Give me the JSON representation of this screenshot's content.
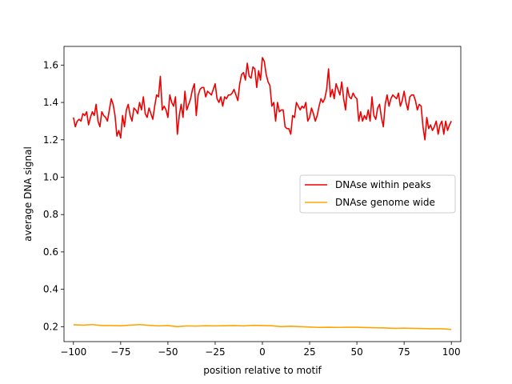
{
  "chart_data": {
    "type": "line",
    "title": "",
    "xlabel": "position relative to motif",
    "ylabel": "average DNA signal",
    "xlim": [
      -105,
      105
    ],
    "ylim": [
      0.12,
      1.7
    ],
    "xticks": [
      -100,
      -75,
      -50,
      -25,
      0,
      25,
      50,
      75,
      100
    ],
    "xtick_labels": [
      "−100",
      "−75",
      "−50",
      "−25",
      "0",
      "25",
      "50",
      "75",
      "100"
    ],
    "yticks": [
      0.2,
      0.4,
      0.6,
      0.8,
      1.0,
      1.2,
      1.4,
      1.6
    ],
    "ytick_labels": [
      "0.2",
      "0.4",
      "0.6",
      "0.8",
      "1.0",
      "1.2",
      "1.4",
      "1.6"
    ],
    "grid": false,
    "legend_position": "center-right",
    "series": [
      {
        "name": "DNAse within peaks",
        "color": "#ee0000",
        "points": [
          [
            -100,
            1.32
          ],
          [
            -99,
            1.27
          ],
          [
            -98,
            1.3
          ],
          [
            -97,
            1.31
          ],
          [
            -96,
            1.3
          ],
          [
            -95,
            1.34
          ],
          [
            -94,
            1.33
          ],
          [
            -93,
            1.35
          ],
          [
            -92,
            1.28
          ],
          [
            -91,
            1.32
          ],
          [
            -90,
            1.35
          ],
          [
            -89,
            1.33
          ],
          [
            -88,
            1.39
          ],
          [
            -87,
            1.3
          ],
          [
            -86,
            1.27
          ],
          [
            -85,
            1.35
          ],
          [
            -84,
            1.33
          ],
          [
            -83,
            1.32
          ],
          [
            -82,
            1.3
          ],
          [
            -81,
            1.36
          ],
          [
            -80,
            1.42
          ],
          [
            -79,
            1.39
          ],
          [
            -78,
            1.33
          ],
          [
            -77,
            1.22
          ],
          [
            -76,
            1.25
          ],
          [
            -75,
            1.21
          ],
          [
            -74,
            1.33
          ],
          [
            -73,
            1.27
          ],
          [
            -72,
            1.36
          ],
          [
            -71,
            1.39
          ],
          [
            -70,
            1.33
          ],
          [
            -69,
            1.3
          ],
          [
            -68,
            1.37
          ],
          [
            -67,
            1.36
          ],
          [
            -66,
            1.34
          ],
          [
            -65,
            1.4
          ],
          [
            -64,
            1.36
          ],
          [
            -63,
            1.43
          ],
          [
            -62,
            1.34
          ],
          [
            -61,
            1.32
          ],
          [
            -60,
            1.37
          ],
          [
            -59,
            1.34
          ],
          [
            -58,
            1.31
          ],
          [
            -57,
            1.38
          ],
          [
            -56,
            1.44
          ],
          [
            -55,
            1.43
          ],
          [
            -54,
            1.54
          ],
          [
            -53,
            1.36
          ],
          [
            -52,
            1.38
          ],
          [
            -51,
            1.36
          ],
          [
            -50,
            1.32
          ],
          [
            -49,
            1.44
          ],
          [
            -48,
            1.4
          ],
          [
            -47,
            1.38
          ],
          [
            -46,
            1.43
          ],
          [
            -45,
            1.23
          ],
          [
            -44,
            1.33
          ],
          [
            -43,
            1.39
          ],
          [
            -42,
            1.32
          ],
          [
            -41,
            1.46
          ],
          [
            -40,
            1.36
          ],
          [
            -39,
            1.39
          ],
          [
            -38,
            1.42
          ],
          [
            -37,
            1.47
          ],
          [
            -36,
            1.5
          ],
          [
            -35,
            1.33
          ],
          [
            -34,
            1.44
          ],
          [
            -33,
            1.47
          ],
          [
            -32,
            1.48
          ],
          [
            -31,
            1.48
          ],
          [
            -30,
            1.43
          ],
          [
            -29,
            1.46
          ],
          [
            -28,
            1.45
          ],
          [
            -27,
            1.44
          ],
          [
            -26,
            1.47
          ],
          [
            -25,
            1.5
          ],
          [
            -24,
            1.42
          ],
          [
            -23,
            1.4
          ],
          [
            -22,
            1.43
          ],
          [
            -21,
            1.38
          ],
          [
            -20,
            1.43
          ],
          [
            -19,
            1.42
          ],
          [
            -18,
            1.44
          ],
          [
            -17,
            1.44
          ],
          [
            -16,
            1.45
          ],
          [
            -15,
            1.47
          ],
          [
            -14,
            1.44
          ],
          [
            -13,
            1.41
          ],
          [
            -12,
            1.5
          ],
          [
            -11,
            1.55
          ],
          [
            -10,
            1.56
          ],
          [
            -9,
            1.52
          ],
          [
            -8,
            1.61
          ],
          [
            -7,
            1.54
          ],
          [
            -6,
            1.53
          ],
          [
            -5,
            1.59
          ],
          [
            -4,
            1.58
          ],
          [
            -3,
            1.48
          ],
          [
            -2,
            1.57
          ],
          [
            -1,
            1.52
          ],
          [
            0,
            1.64
          ],
          [
            1,
            1.62
          ],
          [
            2,
            1.55
          ],
          [
            3,
            1.51
          ],
          [
            4,
            1.49
          ],
          [
            5,
            1.38
          ],
          [
            6,
            1.4
          ],
          [
            7,
            1.3
          ],
          [
            8,
            1.4
          ],
          [
            9,
            1.35
          ],
          [
            10,
            1.36
          ],
          [
            11,
            1.36
          ],
          [
            12,
            1.27
          ],
          [
            13,
            1.26
          ],
          [
            14,
            1.26
          ],
          [
            15,
            1.23
          ],
          [
            16,
            1.33
          ],
          [
            17,
            1.32
          ],
          [
            18,
            1.4
          ],
          [
            19,
            1.38
          ],
          [
            20,
            1.36
          ],
          [
            21,
            1.38
          ],
          [
            22,
            1.37
          ],
          [
            23,
            1.4
          ],
          [
            24,
            1.3
          ],
          [
            25,
            1.32
          ],
          [
            26,
            1.37
          ],
          [
            27,
            1.34
          ],
          [
            28,
            1.3
          ],
          [
            29,
            1.33
          ],
          [
            30,
            1.38
          ],
          [
            31,
            1.42
          ],
          [
            32,
            1.4
          ],
          [
            33,
            1.42
          ],
          [
            34,
            1.47
          ],
          [
            35,
            1.58
          ],
          [
            36,
            1.43
          ],
          [
            37,
            1.47
          ],
          [
            38,
            1.42
          ],
          [
            39,
            1.5
          ],
          [
            40,
            1.47
          ],
          [
            41,
            1.44
          ],
          [
            42,
            1.51
          ],
          [
            43,
            1.42
          ],
          [
            44,
            1.36
          ],
          [
            45,
            1.48
          ],
          [
            46,
            1.43
          ],
          [
            47,
            1.42
          ],
          [
            48,
            1.45
          ],
          [
            49,
            1.43
          ],
          [
            50,
            1.42
          ],
          [
            51,
            1.3
          ],
          [
            52,
            1.35
          ],
          [
            53,
            1.3
          ],
          [
            54,
            1.33
          ],
          [
            55,
            1.31
          ],
          [
            56,
            1.36
          ],
          [
            57,
            1.3
          ],
          [
            58,
            1.43
          ],
          [
            59,
            1.33
          ],
          [
            60,
            1.31
          ],
          [
            61,
            1.37
          ],
          [
            62,
            1.39
          ],
          [
            63,
            1.32
          ],
          [
            64,
            1.27
          ],
          [
            65,
            1.39
          ],
          [
            66,
            1.44
          ],
          [
            67,
            1.38
          ],
          [
            68,
            1.42
          ],
          [
            69,
            1.44
          ],
          [
            70,
            1.43
          ],
          [
            71,
            1.42
          ],
          [
            72,
            1.45
          ],
          [
            73,
            1.38
          ],
          [
            74,
            1.41
          ],
          [
            75,
            1.46
          ],
          [
            76,
            1.4
          ],
          [
            77,
            1.36
          ],
          [
            78,
            1.43
          ],
          [
            79,
            1.44
          ],
          [
            80,
            1.44
          ],
          [
            81,
            1.41
          ],
          [
            82,
            1.36
          ],
          [
            83,
            1.39
          ],
          [
            84,
            1.38
          ],
          [
            85,
            1.27
          ],
          [
            86,
            1.2
          ],
          [
            87,
            1.32
          ],
          [
            88,
            1.26
          ],
          [
            89,
            1.28
          ],
          [
            90,
            1.25
          ],
          [
            91,
            1.27
          ],
          [
            92,
            1.3
          ],
          [
            93,
            1.23
          ],
          [
            94,
            1.28
          ],
          [
            95,
            1.3
          ],
          [
            96,
            1.23
          ],
          [
            97,
            1.3
          ],
          [
            98,
            1.25
          ],
          [
            99,
            1.28
          ],
          [
            100,
            1.3
          ]
        ]
      },
      {
        "name": "DNAse genome wide",
        "color": "#ffa500",
        "points": [
          [
            -100,
            0.21
          ],
          [
            -95,
            0.208
          ],
          [
            -90,
            0.211
          ],
          [
            -85,
            0.206
          ],
          [
            -80,
            0.206
          ],
          [
            -75,
            0.205
          ],
          [
            -70,
            0.208
          ],
          [
            -65,
            0.211
          ],
          [
            -60,
            0.207
          ],
          [
            -55,
            0.204
          ],
          [
            -50,
            0.206
          ],
          [
            -45,
            0.2
          ],
          [
            -40,
            0.204
          ],
          [
            -35,
            0.203
          ],
          [
            -30,
            0.205
          ],
          [
            -25,
            0.204
          ],
          [
            -20,
            0.205
          ],
          [
            -15,
            0.206
          ],
          [
            -10,
            0.204
          ],
          [
            -5,
            0.207
          ],
          [
            0,
            0.206
          ],
          [
            5,
            0.205
          ],
          [
            10,
            0.2
          ],
          [
            15,
            0.202
          ],
          [
            20,
            0.2
          ],
          [
            25,
            0.198
          ],
          [
            30,
            0.196
          ],
          [
            35,
            0.197
          ],
          [
            40,
            0.196
          ],
          [
            45,
            0.197
          ],
          [
            50,
            0.197
          ],
          [
            55,
            0.195
          ],
          [
            60,
            0.194
          ],
          [
            65,
            0.193
          ],
          [
            70,
            0.191
          ],
          [
            75,
            0.192
          ],
          [
            80,
            0.191
          ],
          [
            85,
            0.19
          ],
          [
            90,
            0.189
          ],
          [
            95,
            0.189
          ],
          [
            100,
            0.185
          ]
        ]
      }
    ]
  }
}
